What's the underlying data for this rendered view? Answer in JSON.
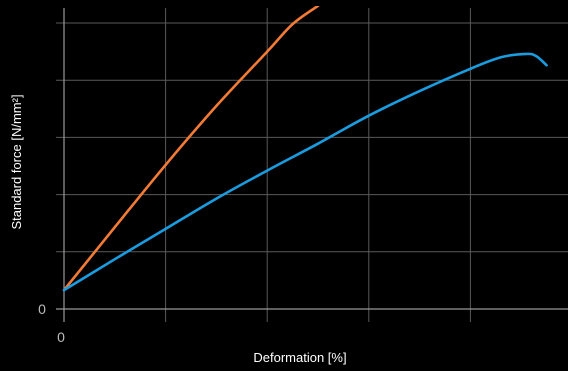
{
  "chart_data": {
    "type": "line",
    "xlabel": "Deformation [%]",
    "ylabel": "Standard force [N/mm²]",
    "xlim": [
      0,
      5
    ],
    "ylim": [
      0,
      5
    ],
    "x_ticks": [
      0,
      1,
      2,
      3,
      4,
      5
    ],
    "y_ticks": [
      0,
      1,
      2,
      3,
      4,
      5
    ],
    "x_tick_labels": [
      "0"
    ],
    "y_tick_labels": [
      "0"
    ],
    "grid": true,
    "series": [
      {
        "color": "#f27b35",
        "points": [
          [
            0,
            0.33
          ],
          [
            0.5,
            1.43
          ],
          [
            1.0,
            2.52
          ],
          [
            1.5,
            3.55
          ],
          [
            2.0,
            4.5
          ],
          [
            2.25,
            4.98
          ],
          [
            2.5,
            5.3
          ]
        ]
      },
      {
        "color": "#1a9ce0",
        "points": [
          [
            0,
            0.33
          ],
          [
            0.5,
            0.87
          ],
          [
            1.0,
            1.4
          ],
          [
            1.5,
            1.93
          ],
          [
            2.0,
            2.42
          ],
          [
            2.5,
            2.89
          ],
          [
            3.0,
            3.38
          ],
          [
            3.5,
            3.81
          ],
          [
            4.0,
            4.2
          ],
          [
            4.3,
            4.4
          ],
          [
            4.55,
            4.46
          ],
          [
            4.65,
            4.42
          ],
          [
            4.75,
            4.26
          ]
        ]
      }
    ]
  }
}
